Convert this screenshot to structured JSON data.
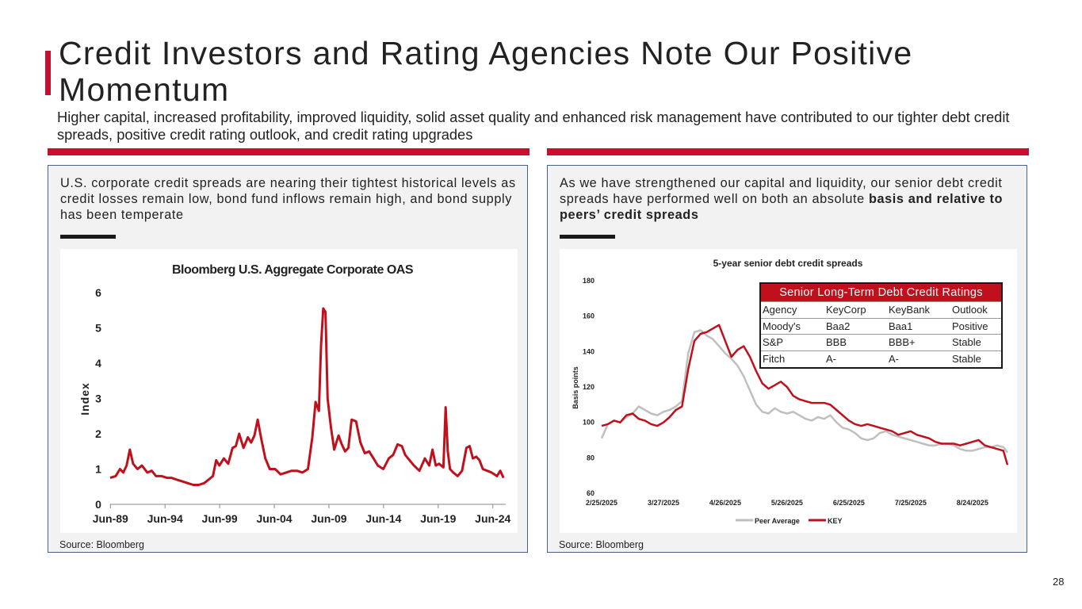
{
  "header": {
    "title": "Credit Investors and Rating Agencies Note Our Positive Momentum",
    "subtitle": "Higher capital, increased profitability, improved liquidity, solid asset quality and enhanced risk management have contributed to our tighter debt credit spreads, positive credit rating outlook, and credit rating upgrades"
  },
  "left_panel": {
    "text": "U.S. corporate credit spreads are nearing their tightest historical levels as credit losses remain low, bond fund inflows remain high, and bond supply has been temperate",
    "source": "Source: Bloomberg"
  },
  "right_panel": {
    "text_plain": "As we have strengthened our capital and liquidity, our senior debt credit spreads have performed well on both an absolute ",
    "text_bold": "basis and relative to peers’ credit spreads",
    "source": "Source: Bloomberg"
  },
  "ratings_table": {
    "title": "Senior Long-Term Debt Credit Ratings",
    "header": [
      "Agency",
      "KeyCorp",
      "KeyBank",
      "Outlook"
    ],
    "rows": [
      [
        "Moody's",
        "Baa2",
        "Baa1",
        "Positive"
      ],
      [
        "S&P",
        "BBB",
        "BBB+",
        "Stable"
      ],
      [
        "Fitch",
        "A-",
        "A-",
        "Stable"
      ]
    ]
  },
  "chart_data": [
    {
      "type": "line",
      "title": "Bloomberg U.S. Aggregate Corporate OAS",
      "xlabel": "",
      "ylabel": "Index",
      "ylim": [
        0,
        6
      ],
      "yticks": [
        0,
        1,
        2,
        3,
        4,
        5,
        6
      ],
      "xlim": [
        1989.4,
        2025.6
      ],
      "xticks": [
        {
          "value": 1989.42,
          "label": "Jun-89"
        },
        {
          "value": 1994.42,
          "label": "Jun-94"
        },
        {
          "value": 1999.42,
          "label": "Jun-99"
        },
        {
          "value": 2004.42,
          "label": "Jun-04"
        },
        {
          "value": 2009.42,
          "label": "Jun-09"
        },
        {
          "value": 2014.42,
          "label": "Jun-14"
        },
        {
          "value": 2019.42,
          "label": "Jun-19"
        },
        {
          "value": 2024.42,
          "label": "Jun-24"
        }
      ],
      "color": "#c0101c",
      "series": [
        {
          "name": "Bloomberg U.S. Aggregate Corporate OAS",
          "x": [
            1989.4,
            1989.9,
            1990.3,
            1990.6,
            1990.9,
            1991.2,
            1991.5,
            1991.9,
            1992.3,
            1992.8,
            1993.2,
            1993.6,
            1994.1,
            1994.6,
            1995.0,
            1995.5,
            1996.0,
            1996.5,
            1997.0,
            1997.5,
            1998.0,
            1998.4,
            1998.8,
            1999.1,
            1999.4,
            1999.8,
            2000.2,
            2000.6,
            2000.9,
            2001.2,
            2001.6,
            2002.0,
            2002.3,
            2002.6,
            2002.9,
            2003.2,
            2003.6,
            2004.0,
            2004.5,
            2005.0,
            2005.5,
            2006.0,
            2006.5,
            2007.0,
            2007.5,
            2007.9,
            2008.2,
            2008.5,
            2008.7,
            2008.9,
            2009.1,
            2009.3,
            2009.6,
            2009.9,
            2010.3,
            2010.6,
            2010.9,
            2011.2,
            2011.5,
            2011.9,
            2012.3,
            2012.7,
            2013.1,
            2013.5,
            2013.9,
            2014.4,
            2014.9,
            2015.3,
            2015.7,
            2016.1,
            2016.4,
            2016.8,
            2017.2,
            2017.7,
            2018.2,
            2018.6,
            2018.9,
            2019.2,
            2019.5,
            2019.9,
            2020.1,
            2020.3,
            2020.5,
            2020.8,
            2021.2,
            2021.6,
            2022.0,
            2022.3,
            2022.6,
            2022.9,
            2023.2,
            2023.5,
            2023.9,
            2024.3,
            2024.8,
            2025.1,
            2025.4
          ],
          "values": [
            0.75,
            0.8,
            1.0,
            0.9,
            1.1,
            1.55,
            1.15,
            1.0,
            1.1,
            0.9,
            0.95,
            0.8,
            0.8,
            0.75,
            0.75,
            0.7,
            0.65,
            0.6,
            0.55,
            0.55,
            0.6,
            0.7,
            0.8,
            1.25,
            1.1,
            1.3,
            1.15,
            1.6,
            1.65,
            2.0,
            1.6,
            1.9,
            1.75,
            1.95,
            2.4,
            1.9,
            1.3,
            1.0,
            1.0,
            0.85,
            0.9,
            0.95,
            0.95,
            0.9,
            1.0,
            1.9,
            2.9,
            2.65,
            4.5,
            5.55,
            5.45,
            3.0,
            2.2,
            1.55,
            1.95,
            1.7,
            1.5,
            1.6,
            2.4,
            2.35,
            1.75,
            1.45,
            1.5,
            1.3,
            1.1,
            1.0,
            1.3,
            1.4,
            1.7,
            1.65,
            1.4,
            1.25,
            1.1,
            0.95,
            1.3,
            1.1,
            1.55,
            1.1,
            1.15,
            1.05,
            2.75,
            1.5,
            1.0,
            0.9,
            0.8,
            0.95,
            1.6,
            1.65,
            1.3,
            1.35,
            1.25,
            1.0,
            0.95,
            0.9,
            0.8,
            0.95,
            0.75
          ]
        }
      ]
    },
    {
      "type": "line",
      "title": "5-year senior debt credit spreads",
      "xlabel": "",
      "ylabel": "Basis points",
      "ylim": [
        60,
        180
      ],
      "yticks": [
        60,
        80,
        100,
        120,
        140,
        160,
        180
      ],
      "xlim": [
        0,
        197
      ],
      "xticks": [
        {
          "value": 0,
          "label": "2/25/2025"
        },
        {
          "value": 30,
          "label": "3/27/2025"
        },
        {
          "value": 60,
          "label": "4/26/2025"
        },
        {
          "value": 90,
          "label": "5/26/2025"
        },
        {
          "value": 120,
          "label": "6/25/2025"
        },
        {
          "value": 150,
          "label": "7/25/2025"
        },
        {
          "value": 180,
          "label": "8/24/2025"
        }
      ],
      "legend": "bottom",
      "series": [
        {
          "name": "Peer Average",
          "color": "#bfbfbf",
          "x": [
            0,
            3,
            6,
            9,
            12,
            15,
            18,
            21,
            24,
            27,
            30,
            33,
            36,
            39,
            42,
            45,
            48,
            51,
            54,
            57,
            60,
            63,
            66,
            69,
            72,
            75,
            78,
            81,
            84,
            87,
            90,
            93,
            96,
            99,
            102,
            105,
            108,
            111,
            114,
            117,
            120,
            123,
            126,
            129,
            132,
            135,
            138,
            141,
            144,
            147,
            150,
            153,
            156,
            159,
            162,
            165,
            168,
            171,
            174,
            177,
            180,
            183,
            186,
            189,
            192,
            195,
            197
          ],
          "values": [
            91,
            99,
            101,
            100,
            103,
            105,
            109,
            107,
            105,
            104,
            106,
            107,
            109,
            112,
            139,
            151,
            152,
            149,
            147,
            143,
            139,
            136,
            132,
            126,
            118,
            110,
            106,
            105,
            108,
            106,
            105,
            106,
            104,
            102,
            101,
            103,
            102,
            104,
            100,
            97,
            96,
            94,
            91,
            90,
            91,
            94,
            95,
            93,
            92,
            91,
            90,
            89,
            88,
            87,
            87,
            88,
            88,
            87,
            85,
            84,
            84,
            85,
            86,
            86,
            87,
            86,
            83
          ]
        },
        {
          "name": "KEY",
          "color": "#c0101c",
          "x": [
            0,
            3,
            6,
            9,
            12,
            15,
            18,
            21,
            24,
            27,
            30,
            33,
            36,
            39,
            42,
            45,
            48,
            51,
            54,
            57,
            60,
            63,
            66,
            69,
            72,
            75,
            78,
            81,
            84,
            87,
            90,
            93,
            96,
            99,
            102,
            105,
            108,
            111,
            114,
            117,
            120,
            123,
            126,
            129,
            132,
            135,
            138,
            141,
            144,
            147,
            150,
            153,
            156,
            159,
            162,
            165,
            168,
            171,
            174,
            177,
            180,
            183,
            186,
            189,
            192,
            195,
            197
          ],
          "values": [
            98,
            99,
            101,
            100,
            104,
            105,
            102,
            101,
            99,
            98,
            100,
            103,
            107,
            109,
            130,
            146,
            150,
            151,
            153,
            155,
            146,
            137,
            141,
            143,
            137,
            129,
            122,
            119,
            121,
            123,
            120,
            115,
            113,
            112,
            111,
            111,
            111,
            110,
            107,
            104,
            101,
            99,
            98,
            99,
            98,
            97,
            96,
            95,
            93,
            94,
            95,
            93,
            92,
            91,
            89,
            88,
            88,
            88,
            87,
            88,
            89,
            90,
            87,
            86,
            85,
            84,
            76
          ]
        }
      ]
    }
  ],
  "page_number": "28"
}
